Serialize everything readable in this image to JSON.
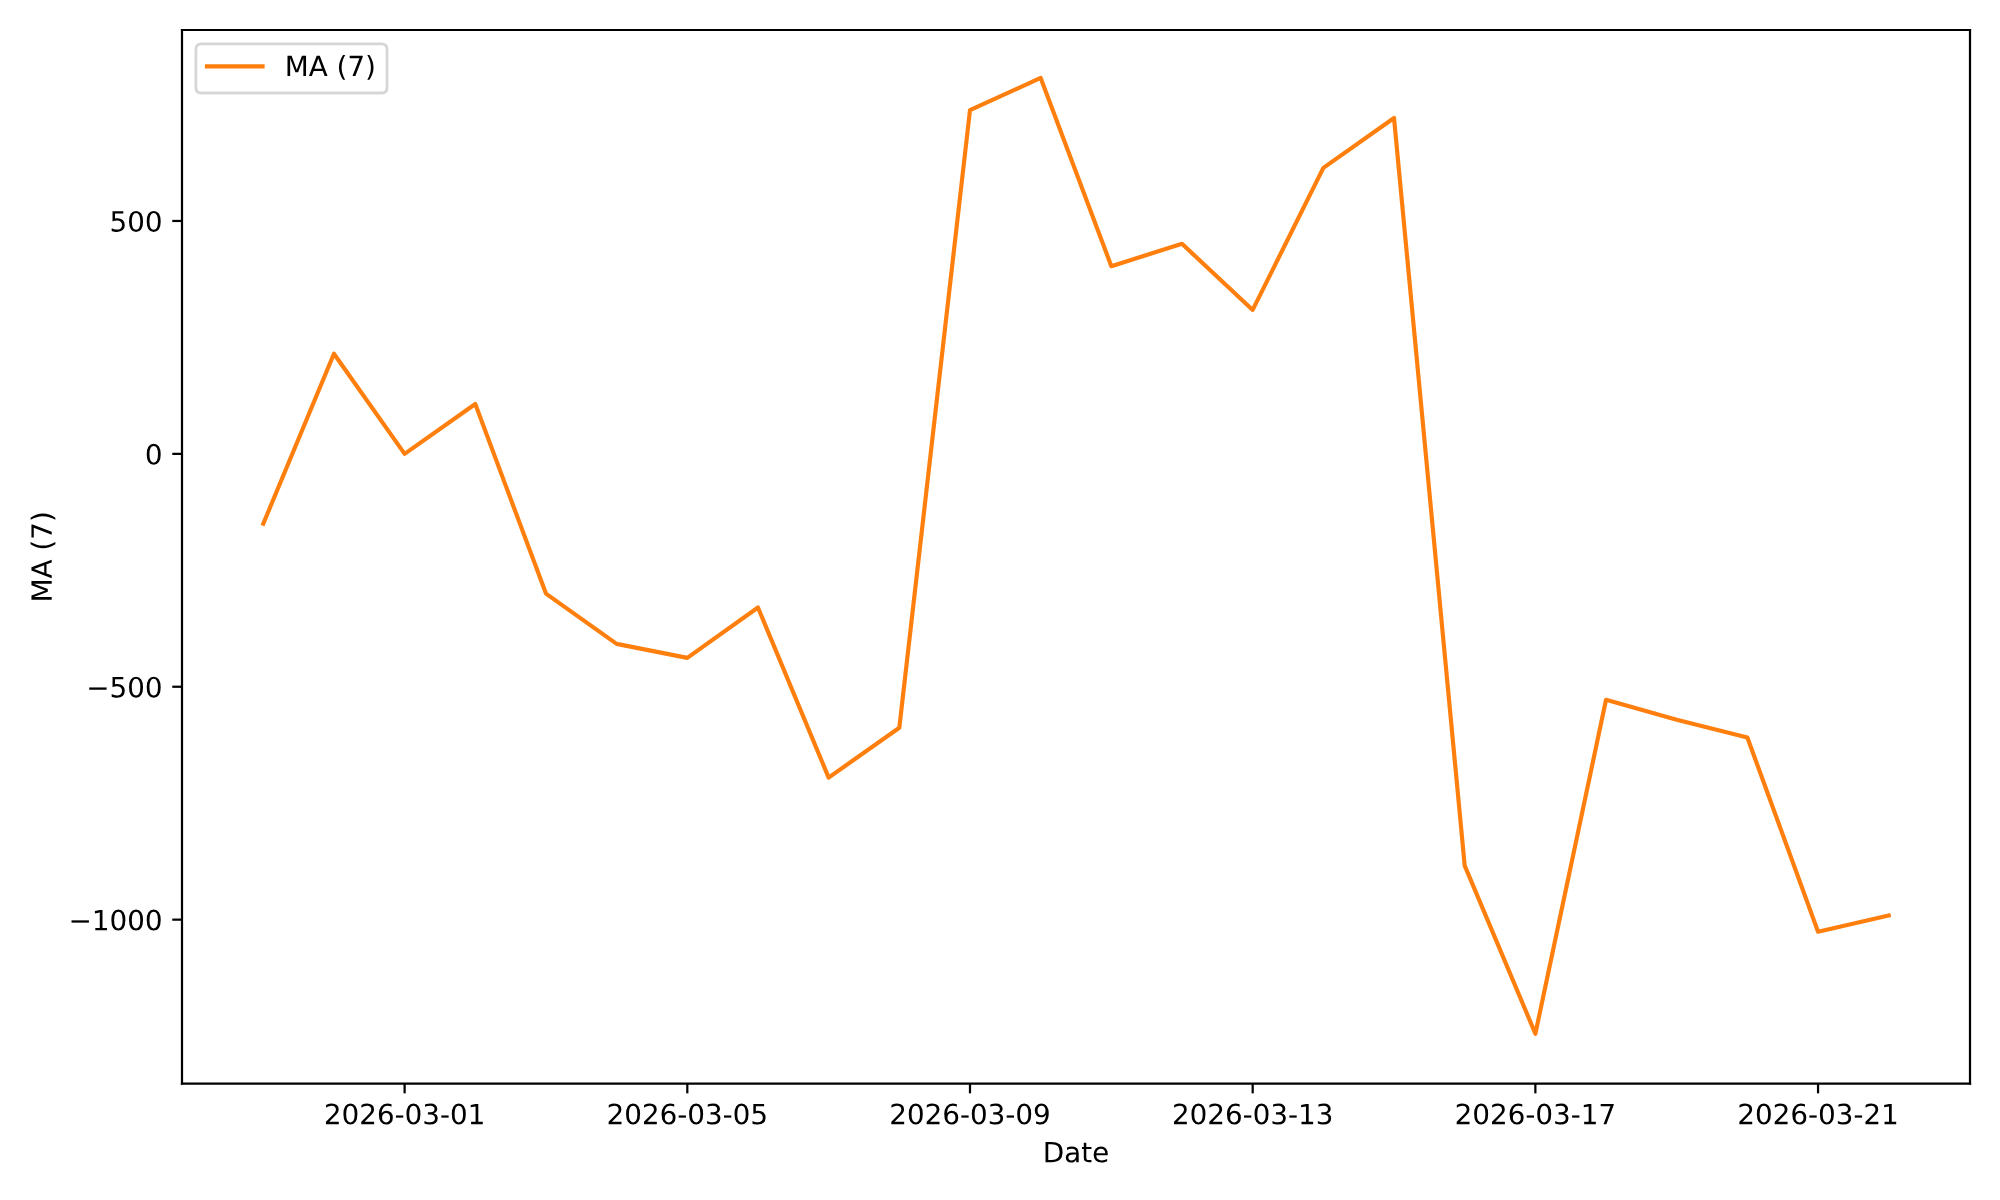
{
  "chart_data": {
    "type": "line",
    "xlabel": "Date",
    "ylabel": "MA (7)",
    "x": [
      "2026-02-27",
      "2026-02-28",
      "2026-03-01",
      "2026-03-02",
      "2026-03-03",
      "2026-03-04",
      "2026-03-05",
      "2026-03-06",
      "2026-03-07",
      "2026-03-08",
      "2026-03-09",
      "2026-03-10",
      "2026-03-11",
      "2026-03-12",
      "2026-03-13",
      "2026-03-14",
      "2026-03-15",
      "2026-03-16",
      "2026-03-17",
      "2026-03-18",
      "2026-03-19",
      "2026-03-20",
      "2026-03-21",
      "2026-03-22"
    ],
    "series": [
      {
        "name": "MA (7)",
        "color": "#ff7f0e",
        "values": [
          -150,
          215,
          0,
          107,
          -300,
          -408,
          -438,
          -330,
          -695,
          -588,
          738,
          807,
          403,
          451,
          309,
          614,
          721,
          -884,
          -1245,
          -528,
          -571,
          -609,
          -1026,
          -991
        ]
      }
    ],
    "xlim": [
      "2026-02-25T20:24",
      "2026-03-23T03:36"
    ],
    "xticks": [
      "2026-03-01",
      "2026-03-05",
      "2026-03-09",
      "2026-03-13",
      "2026-03-17",
      "2026-03-21"
    ],
    "ylim": [
      -1352,
      910
    ],
    "yticks": [
      {
        "value": -1000,
        "label": "−1000"
      },
      {
        "value": -500,
        "label": "−500"
      },
      0,
      500
    ],
    "grid": false,
    "legend": "top left",
    "marker": "none",
    "line_style": "solid"
  }
}
